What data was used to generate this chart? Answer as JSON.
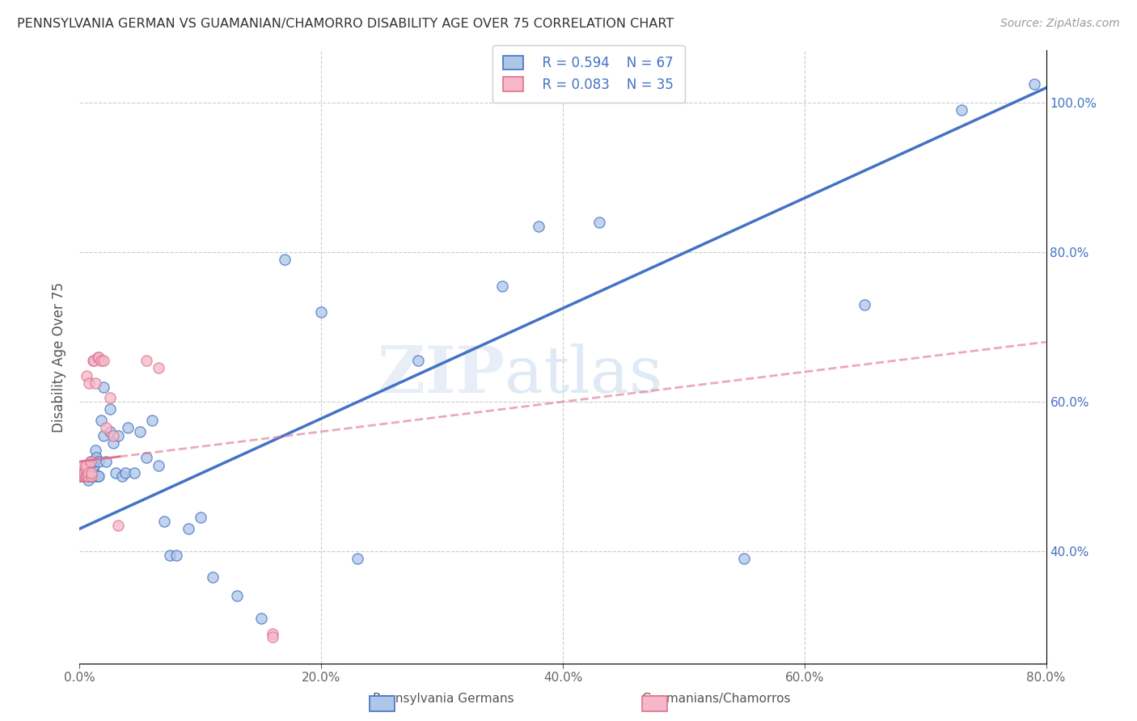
{
  "title": "PENNSYLVANIA GERMAN VS GUAMANIAN/CHAMORRO DISABILITY AGE OVER 75 CORRELATION CHART",
  "source": "Source: ZipAtlas.com",
  "ylabel": "Disability Age Over 75",
  "legend_label1": "Pennsylvania Germans",
  "legend_label2": "Guamanians/Chamorros",
  "legend_r1": "R = 0.594",
  "legend_n1": "N = 67",
  "legend_r2": "R = 0.083",
  "legend_n2": "N = 35",
  "color_blue": "#aec6e8",
  "color_pink": "#f4b8c8",
  "line_color_blue": "#4472c4",
  "line_color_pink": "#e07090",
  "watermark_zip": "ZIP",
  "watermark_atlas": "atlas",
  "xmin": 0.0,
  "xmax": 0.8,
  "ymin": 0.25,
  "ymax": 1.07,
  "blue_line_x0": 0.0,
  "blue_line_y0": 0.43,
  "blue_line_x1": 0.8,
  "blue_line_y1": 1.02,
  "pink_line_x0": 0.0,
  "pink_line_y0": 0.52,
  "pink_line_x1": 0.8,
  "pink_line_y1": 0.68,
  "blue_points_x": [
    0.001,
    0.001,
    0.003,
    0.003,
    0.004,
    0.004,
    0.005,
    0.005,
    0.005,
    0.006,
    0.006,
    0.007,
    0.007,
    0.008,
    0.008,
    0.009,
    0.009,
    0.009,
    0.01,
    0.01,
    0.01,
    0.011,
    0.011,
    0.012,
    0.012,
    0.013,
    0.013,
    0.014,
    0.015,
    0.016,
    0.016,
    0.018,
    0.02,
    0.02,
    0.022,
    0.025,
    0.025,
    0.028,
    0.03,
    0.032,
    0.035,
    0.038,
    0.04,
    0.045,
    0.05,
    0.055,
    0.06,
    0.065,
    0.07,
    0.075,
    0.08,
    0.09,
    0.1,
    0.11,
    0.13,
    0.15,
    0.17,
    0.2,
    0.23,
    0.28,
    0.35,
    0.38,
    0.43,
    0.55,
    0.65,
    0.73,
    0.79
  ],
  "blue_points_y": [
    0.5,
    0.5,
    0.5,
    0.505,
    0.5,
    0.505,
    0.5,
    0.51,
    0.515,
    0.5,
    0.51,
    0.495,
    0.5,
    0.5,
    0.515,
    0.5,
    0.51,
    0.52,
    0.5,
    0.51,
    0.52,
    0.5,
    0.51,
    0.515,
    0.52,
    0.5,
    0.535,
    0.525,
    0.5,
    0.5,
    0.52,
    0.575,
    0.555,
    0.62,
    0.52,
    0.56,
    0.59,
    0.545,
    0.505,
    0.555,
    0.5,
    0.505,
    0.565,
    0.505,
    0.56,
    0.525,
    0.575,
    0.515,
    0.44,
    0.395,
    0.395,
    0.43,
    0.445,
    0.365,
    0.34,
    0.31,
    0.79,
    0.72,
    0.39,
    0.655,
    0.755,
    0.835,
    0.84,
    0.39,
    0.73,
    0.99,
    1.025
  ],
  "pink_points_x": [
    0.001,
    0.001,
    0.002,
    0.002,
    0.003,
    0.003,
    0.003,
    0.004,
    0.004,
    0.005,
    0.005,
    0.005,
    0.006,
    0.006,
    0.007,
    0.007,
    0.008,
    0.009,
    0.01,
    0.01,
    0.011,
    0.012,
    0.013,
    0.015,
    0.016,
    0.018,
    0.02,
    0.022,
    0.025,
    0.028,
    0.032,
    0.055,
    0.065,
    0.16,
    0.16
  ],
  "pink_points_y": [
    0.5,
    0.505,
    0.5,
    0.505,
    0.5,
    0.51,
    0.515,
    0.5,
    0.505,
    0.5,
    0.51,
    0.515,
    0.5,
    0.635,
    0.5,
    0.505,
    0.625,
    0.52,
    0.5,
    0.505,
    0.655,
    0.655,
    0.625,
    0.66,
    0.66,
    0.655,
    0.655,
    0.565,
    0.605,
    0.555,
    0.435,
    0.655,
    0.645,
    0.29,
    0.285
  ]
}
